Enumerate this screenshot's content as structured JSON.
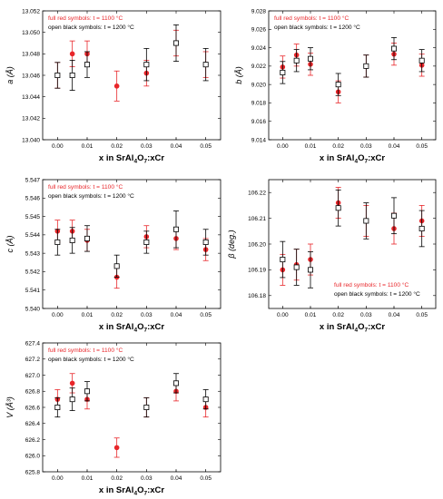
{
  "figure": {
    "red_color": "#e8262a",
    "black_color": "#000000",
    "legend_red": "full red symbols: t = 1100 °C",
    "legend_black": "open black symbols: t = 1200 °C"
  },
  "chart_data": [
    {
      "type": "scatter",
      "panel": "a",
      "ylabel": "a (Å)",
      "xlabel_base": "x in SrAl",
      "xlabel_sub1": "4",
      "xlabel_mid": "O",
      "xlabel_sub2": "7",
      "xlabel_tail": ":xCr",
      "xlim": [
        -0.005,
        0.055
      ],
      "ylim": [
        13.04,
        13.052
      ],
      "xticks": [
        "0.00",
        "0.01",
        "0.02",
        "0.03",
        "0.04",
        "0.05"
      ],
      "yticks": [
        "13.040",
        "13.042",
        "13.044",
        "13.046",
        "13.048",
        "13.050",
        "13.052"
      ],
      "legend_position": "top-left",
      "series": [
        {
          "name": "full red symbols: t = 1100 °C",
          "x": [
            0.0,
            0.005,
            0.01,
            0.02,
            0.03,
            0.04,
            0.05
          ],
          "y": [
            13.046,
            13.048,
            13.048,
            13.045,
            13.0462,
            13.049,
            13.047
          ],
          "err": [
            0.0012,
            0.0012,
            0.0012,
            0.0014,
            0.0012,
            0.0012,
            0.0012
          ]
        },
        {
          "name": "open black symbols: t = 1200 °C",
          "x": [
            0.0,
            0.005,
            0.01,
            0.03,
            0.04,
            0.05
          ],
          "y": [
            13.046,
            13.046,
            13.047,
            13.047,
            13.049,
            13.047
          ],
          "err": [
            0.0012,
            0.0014,
            0.0012,
            0.0015,
            0.0017,
            0.0015
          ]
        }
      ]
    },
    {
      "type": "scatter",
      "panel": "b",
      "ylabel": "b (Å)",
      "xlabel_base": "x in SrAl",
      "xlabel_sub1": "4",
      "xlabel_mid": "O",
      "xlabel_sub2": "7",
      "xlabel_tail": ":xCr",
      "xlim": [
        -0.005,
        0.055
      ],
      "ylim": [
        9.014,
        9.028
      ],
      "xticks": [
        "0.00",
        "0.01",
        "0.02",
        "0.03",
        "0.04",
        "0.05"
      ],
      "yticks": [
        "9.014",
        "9.016",
        "9.018",
        "9.020",
        "9.022",
        "9.024",
        "9.026",
        "9.028"
      ],
      "legend_position": "top-left",
      "series": [
        {
          "name": "full red symbols: t = 1100 °C",
          "x": [
            0.0,
            0.005,
            0.01,
            0.02,
            0.03,
            0.04,
            0.05
          ],
          "y": [
            9.0219,
            9.0232,
            9.0222,
            9.0192,
            9.022,
            9.0233,
            9.0221
          ],
          "err": [
            0.0012,
            0.0012,
            0.0012,
            0.0012,
            0.0012,
            0.0012,
            0.0012
          ]
        },
        {
          "name": "open black symbols: t = 1200 °C",
          "x": [
            0.0,
            0.005,
            0.01,
            0.02,
            0.03,
            0.04,
            0.05
          ],
          "y": [
            9.0213,
            9.0226,
            9.0228,
            9.02,
            9.022,
            9.0239,
            9.0226
          ],
          "err": [
            0.0012,
            0.0012,
            0.0012,
            0.0012,
            0.0012,
            0.0012,
            0.0012
          ]
        }
      ]
    },
    {
      "type": "scatter",
      "panel": "c",
      "ylabel": "c (Å)",
      "xlabel_base": "x in SrAl",
      "xlabel_sub1": "4",
      "xlabel_mid": "O",
      "xlabel_sub2": "7",
      "xlabel_tail": ":xCr",
      "xlim": [
        -0.005,
        0.055
      ],
      "ylim": [
        5.54,
        5.547
      ],
      "xticks": [
        "0.00",
        "0.01",
        "0.02",
        "0.03",
        "0.04",
        "0.05"
      ],
      "yticks": [
        "5.540",
        "5.541",
        "5.542",
        "5.543",
        "5.544",
        "5.545",
        "5.546",
        "5.547"
      ],
      "legend_position": "top-left",
      "series": [
        {
          "name": "full red symbols: t = 1100 °C",
          "x": [
            0.0,
            0.005,
            0.01,
            0.02,
            0.03,
            0.04,
            0.05
          ],
          "y": [
            5.5442,
            5.5442,
            5.5437,
            5.5417,
            5.5439,
            5.5438,
            5.5432
          ],
          "err": [
            0.0006,
            0.0006,
            0.0006,
            0.0006,
            0.0006,
            0.0006,
            0.0006
          ]
        },
        {
          "name": "open black symbols: t = 1200 °C",
          "x": [
            0.0,
            0.005,
            0.01,
            0.02,
            0.03,
            0.04,
            0.05
          ],
          "y": [
            5.5436,
            5.5437,
            5.5438,
            5.5423,
            5.5436,
            5.5443,
            5.5436
          ],
          "err": [
            0.0007,
            0.0007,
            0.0007,
            0.0006,
            0.0006,
            0.001,
            0.0007
          ]
        }
      ]
    },
    {
      "type": "scatter",
      "panel": "beta",
      "ylabel": "β (deg.)",
      "xlabel_base": "x in SrAl",
      "xlabel_sub1": "4",
      "xlabel_mid": "O",
      "xlabel_sub2": "7",
      "xlabel_tail": ":xCr",
      "xlim": [
        -0.005,
        0.055
      ],
      "ylim": [
        106.175,
        106.225
      ],
      "xticks": [
        "0.00",
        "0.01",
        "0.02",
        "0.03",
        "0.04",
        "0.05"
      ],
      "yticks": [
        "106.18",
        "106.19",
        "106.20",
        "106.21",
        "106.22"
      ],
      "legend_position": "bottom-right",
      "series": [
        {
          "name": "full red symbols: t = 1100 °C",
          "x": [
            0.0,
            0.005,
            0.01,
            0.02,
            0.03,
            0.04,
            0.05
          ],
          "y": [
            106.19,
            106.192,
            106.194,
            106.216,
            106.209,
            106.206,
            106.209
          ],
          "err": [
            0.006,
            0.006,
            0.006,
            0.006,
            0.006,
            0.006,
            0.006
          ]
        },
        {
          "name": "open black symbols: t = 1200 °C",
          "x": [
            0.0,
            0.005,
            0.01,
            0.02,
            0.03,
            0.04,
            0.05
          ],
          "y": [
            106.194,
            106.191,
            106.19,
            106.214,
            106.209,
            106.211,
            106.206
          ],
          "err": [
            0.007,
            0.007,
            0.007,
            0.007,
            0.007,
            0.007,
            0.007
          ]
        }
      ]
    },
    {
      "type": "scatter",
      "panel": "V",
      "ylabel": "V (Å³)",
      "xlabel_base": "x in SrAl",
      "xlabel_sub1": "4",
      "xlabel_mid": "O",
      "xlabel_sub2": "7",
      "xlabel_tail": ":xCr",
      "xlim": [
        -0.005,
        0.055
      ],
      "ylim": [
        625.8,
        627.4
      ],
      "xticks": [
        "0.00",
        "0.01",
        "0.02",
        "0.03",
        "0.04",
        "0.05"
      ],
      "yticks": [
        "625.8",
        "626.0",
        "626.2",
        "626.4",
        "626.6",
        "626.8",
        "627.0",
        "627.2",
        "627.4"
      ],
      "legend_position": "top-left",
      "series": [
        {
          "name": "full red symbols: t = 1100 °C",
          "x": [
            0.0,
            0.005,
            0.01,
            0.02,
            0.03,
            0.04,
            0.05
          ],
          "y": [
            626.7,
            626.9,
            626.7,
            626.1,
            626.6,
            626.8,
            626.6
          ],
          "err": [
            0.12,
            0.12,
            0.12,
            0.12,
            0.12,
            0.12,
            0.12
          ]
        },
        {
          "name": "open black symbols: t = 1200 °C",
          "x": [
            0.0,
            0.005,
            0.01,
            0.03,
            0.04,
            0.05
          ],
          "y": [
            626.6,
            626.7,
            626.8,
            626.6,
            626.9,
            626.7
          ],
          "err": [
            0.12,
            0.14,
            0.12,
            0.12,
            0.12,
            0.12
          ]
        }
      ]
    }
  ]
}
